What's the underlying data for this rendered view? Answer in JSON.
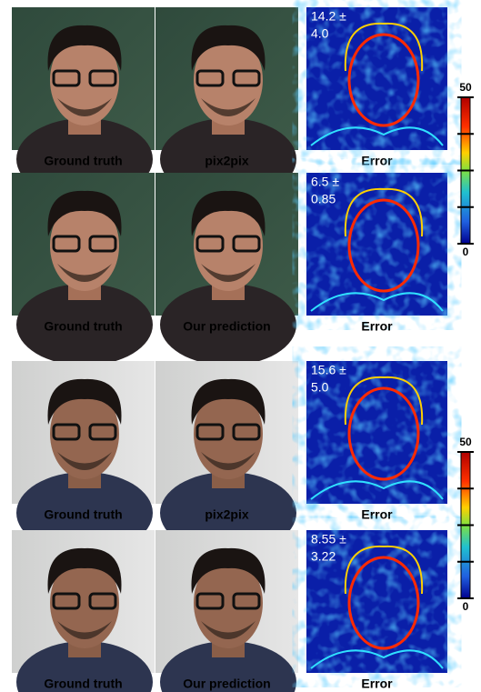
{
  "groups": [
    {
      "rows": [
        {
          "captions": [
            "Ground truth",
            "pix2pix",
            "Error"
          ],
          "error_text": [
            "14.2 ±",
            "4.0"
          ]
        },
        {
          "captions": [
            "Ground truth",
            "Our prediction",
            "Error"
          ],
          "error_text": [
            "6.5 ±",
            "0.85"
          ]
        }
      ],
      "colorbar": {
        "max": 50,
        "min": 0
      }
    },
    {
      "rows": [
        {
          "captions": [
            "Ground truth",
            "pix2pix",
            "Error"
          ],
          "error_text": [
            "15.6 ±",
            "5.0"
          ]
        },
        {
          "captions": [
            "Ground truth",
            "Our prediction",
            "Error"
          ],
          "error_text": [
            "8.55 ±",
            "3.22"
          ]
        }
      ],
      "colorbar": {
        "max": 50,
        "min": 0
      }
    }
  ]
}
